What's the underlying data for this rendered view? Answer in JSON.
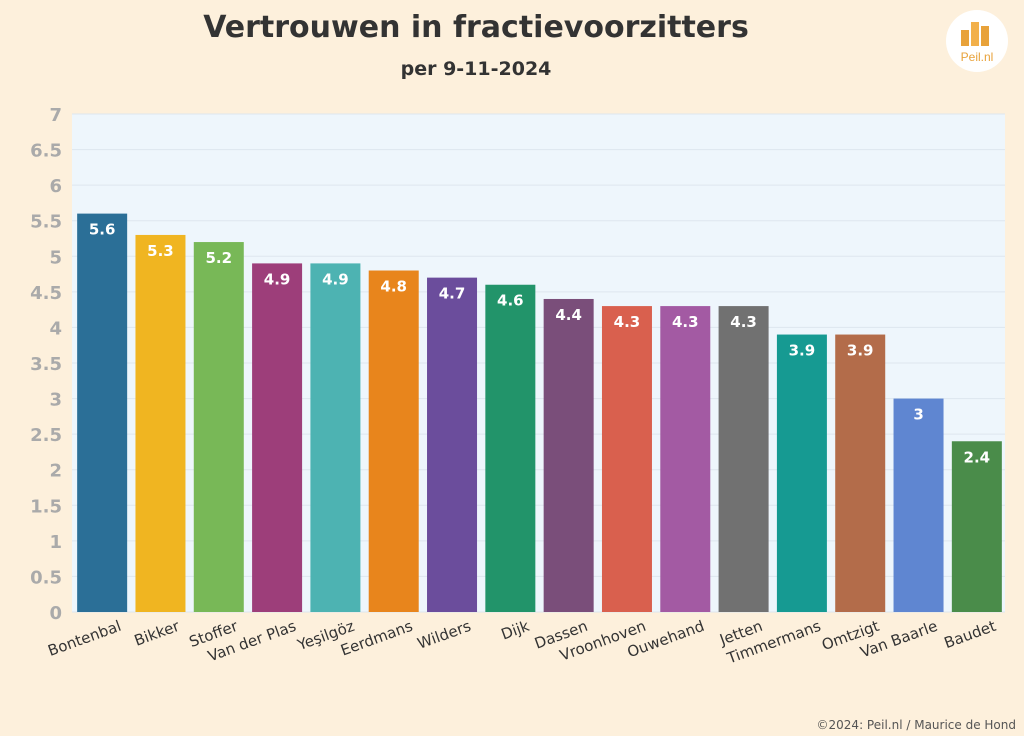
{
  "logo": {
    "text": "Peil.nl"
  },
  "copyright": "©2024: Peil.nl / Maurice de Hond",
  "chart_data": {
    "type": "bar",
    "title": "Vertrouwen in fractievoorzitters",
    "subtitle": "per 9-11-2024",
    "categories": [
      "Bontenbal",
      "Bikker",
      "Stoffer",
      "Van der Plas",
      "Yeşilgöz",
      "Eerdmans",
      "Wilders",
      "Dijk",
      "Dassen",
      "Vroonhoven",
      "Ouwehand",
      "Jetten",
      "Timmermans",
      "Omtzigt",
      "Van Baarle",
      "Baudet"
    ],
    "values": [
      5.6,
      5.3,
      5.2,
      4.9,
      4.9,
      4.8,
      4.7,
      4.6,
      4.4,
      4.3,
      4.3,
      4.3,
      3.9,
      3.9,
      3,
      2.4
    ],
    "data_labels": [
      "5.6",
      "5.3",
      "5.2",
      "4.9",
      "4.9",
      "4.8",
      "4.7",
      "4.6",
      "4.4",
      "4.3",
      "4.3",
      "4.3",
      "3.9",
      "3.9",
      "3",
      "2.4"
    ],
    "colors": [
      "#2b6f97",
      "#f0b521",
      "#78b857",
      "#9d3e7a",
      "#4db3b2",
      "#e8851c",
      "#6b4d9c",
      "#22946a",
      "#7a4e7a",
      "#d9604e",
      "#a35aa3",
      "#717171",
      "#169a92",
      "#b36c4a",
      "#5f86d1",
      "#4a8c4a"
    ],
    "ylim": [
      0,
      7
    ],
    "yticks": [
      "0",
      "0.5",
      "1",
      "1.5",
      "2",
      "2.5",
      "3",
      "3.5",
      "4",
      "4.5",
      "5",
      "5.5",
      "6",
      "6.5",
      "7"
    ],
    "grid": true,
    "xlabel": "",
    "ylabel": ""
  }
}
